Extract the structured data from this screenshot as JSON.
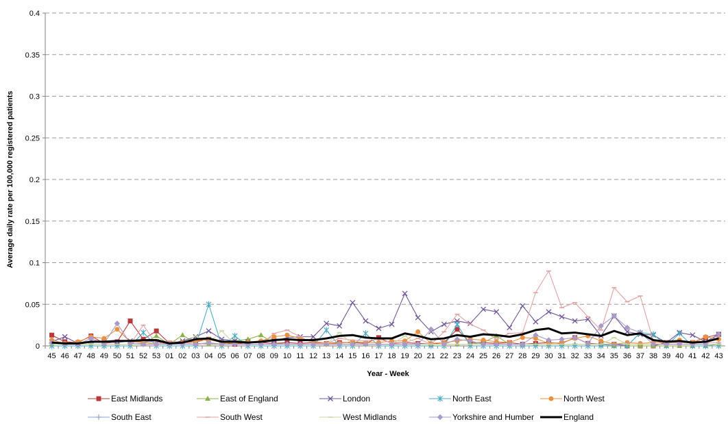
{
  "chart_data": {
    "type": "line",
    "xlabel": "Year - Week",
    "ylabel": "Average daily rate per 100,000 registered patients",
    "ylim": [
      0,
      0.4
    ],
    "yticks": [
      "0",
      "0.05",
      "0.1",
      "0.15",
      "0.2",
      "0.25",
      "0.3",
      "0.35",
      "0.4"
    ],
    "grid": true,
    "legend_position": "bottom",
    "categories": [
      "45",
      "46",
      "47",
      "48",
      "49",
      "50",
      "51",
      "52",
      "53",
      "01",
      "02",
      "03",
      "04",
      "05",
      "06",
      "07",
      "08",
      "09",
      "10",
      "11",
      "12",
      "13",
      "14",
      "15",
      "16",
      "17",
      "18",
      "19",
      "20",
      "21",
      "22",
      "23",
      "24",
      "25",
      "26",
      "27",
      "28",
      "29",
      "30",
      "31",
      "32",
      "33",
      "34",
      "35",
      "36",
      "37",
      "38",
      "39",
      "40",
      "41",
      "42",
      "43"
    ],
    "series": [
      {
        "name": "East Midlands",
        "color": "#b9383b",
        "marker": "square",
        "values": [
          0.013,
          0.005,
          0.004,
          0.012,
          0.003,
          0.005,
          0.03,
          0.008,
          0.018,
          0.003,
          0.004,
          0.005,
          0.008,
          0.004,
          0.002,
          0.004,
          0.004,
          0.003,
          0.004,
          0.003,
          0.004,
          0.003,
          0.004,
          0.004,
          0.003,
          0.01,
          0.003,
          0.004,
          0.003,
          0.002,
          0.004,
          0.02,
          0.004,
          0.004,
          0.003,
          0.004,
          0.002,
          0.003,
          0.004,
          0.003,
          0.01,
          0.003,
          0.002,
          0.002,
          0.0,
          0.0,
          0.0,
          0.004,
          0.004,
          0.004,
          0.01,
          0.014
        ]
      },
      {
        "name": "East of England",
        "color": "#8bb14a",
        "marker": "triangle",
        "values": [
          0.002,
          0.003,
          0.002,
          0.002,
          0.002,
          0.002,
          0.002,
          0.003,
          0.012,
          0.002,
          0.013,
          0.003,
          0.002,
          0.002,
          0.006,
          0.008,
          0.013,
          0.003,
          0.002,
          0.002,
          0.002,
          0.002,
          0.002,
          0.002,
          0.002,
          0.002,
          0.002,
          0.002,
          0.002,
          0.002,
          0.002,
          0.002,
          0.002,
          0.004,
          0.012,
          0.002,
          0.002,
          0.002,
          0.002,
          0.002,
          0.002,
          0.002,
          0.002,
          0.0,
          0.0,
          0.0,
          0.0,
          0.0,
          0.0,
          0.0,
          0.0,
          0.002
        ]
      },
      {
        "name": "London",
        "color": "#6f5598",
        "marker": "x",
        "values": [
          0.005,
          0.011,
          0.003,
          0.006,
          0.005,
          0.004,
          0.006,
          0.005,
          0.005,
          0.003,
          0.006,
          0.011,
          0.018,
          0.008,
          0.006,
          0.005,
          0.004,
          0.006,
          0.01,
          0.011,
          0.011,
          0.027,
          0.024,
          0.052,
          0.03,
          0.021,
          0.026,
          0.063,
          0.034,
          0.017,
          0.026,
          0.03,
          0.027,
          0.044,
          0.041,
          0.022,
          0.048,
          0.029,
          0.041,
          0.035,
          0.03,
          0.032,
          0.012,
          0.036,
          0.017,
          0.014,
          0.013,
          0.004,
          0.016,
          0.013,
          0.005,
          0.014
        ]
      },
      {
        "name": "North East",
        "color": "#4aa9c4",
        "marker": "star",
        "values": [
          0.0,
          0.0,
          0.0,
          0.0,
          0.0,
          0.0,
          0.0,
          0.016,
          0.0,
          0.0,
          0.0,
          0.0,
          0.05,
          0.0,
          0.012,
          0.0,
          0.0,
          0.0,
          0.0,
          0.0,
          0.0,
          0.019,
          0.0,
          0.0,
          0.015,
          0.0,
          0.0,
          0.0,
          0.0,
          0.0,
          0.0,
          0.026,
          0.0,
          0.0,
          0.0,
          0.0,
          0.0,
          0.0,
          0.0,
          0.0,
          0.0,
          0.0,
          0.0,
          0.0,
          0.0,
          0.016,
          0.014,
          0.0,
          0.015,
          0.0,
          0.0,
          0.0
        ]
      },
      {
        "name": "North West",
        "color": "#e9913f",
        "marker": "circle",
        "values": [
          0.007,
          0.003,
          0.005,
          0.011,
          0.009,
          0.02,
          0.005,
          0.004,
          0.002,
          0.003,
          0.004,
          0.006,
          0.008,
          0.004,
          0.003,
          0.004,
          0.006,
          0.011,
          0.013,
          0.009,
          0.006,
          0.003,
          0.003,
          0.005,
          0.004,
          0.004,
          0.006,
          0.006,
          0.017,
          0.003,
          0.004,
          0.006,
          0.008,
          0.007,
          0.005,
          0.004,
          0.01,
          0.009,
          0.003,
          0.004,
          0.009,
          0.012,
          0.006,
          0.002,
          0.004,
          0.003,
          0.004,
          0.004,
          0.007,
          0.004,
          0.011,
          0.008
        ]
      },
      {
        "name": "South East",
        "color": "#88a7d6",
        "marker": "plus",
        "values": [
          0.003,
          0.002,
          0.002,
          0.002,
          0.002,
          0.002,
          0.002,
          0.002,
          0.002,
          0.002,
          0.002,
          0.002,
          0.003,
          0.002,
          0.002,
          0.002,
          0.002,
          0.002,
          0.002,
          0.002,
          0.002,
          0.002,
          0.002,
          0.002,
          0.002,
          0.002,
          0.002,
          0.002,
          0.002,
          0.002,
          0.002,
          0.002,
          0.002,
          0.002,
          0.002,
          0.002,
          0.002,
          0.002,
          0.002,
          0.002,
          0.002,
          0.002,
          0.002,
          0.002,
          0.002,
          0.002,
          0.002,
          0.002,
          0.002,
          0.002,
          0.002,
          0.002
        ]
      },
      {
        "name": "South West",
        "color": "#e3a2a2",
        "marker": "dash",
        "values": [
          0.004,
          0.002,
          0.002,
          0.002,
          0.002,
          0.002,
          0.002,
          0.025,
          0.002,
          0.006,
          0.004,
          0.002,
          0.003,
          0.002,
          0.002,
          0.002,
          0.002,
          0.015,
          0.019,
          0.011,
          0.003,
          0.003,
          0.009,
          0.007,
          0.006,
          0.008,
          0.004,
          0.004,
          0.009,
          0.002,
          0.017,
          0.038,
          0.026,
          0.019,
          0.008,
          0.015,
          0.016,
          0.064,
          0.09,
          0.046,
          0.052,
          0.035,
          0.019,
          0.07,
          0.053,
          0.06,
          0.006,
          0.004,
          0.004,
          0.004,
          0.004,
          0.004
        ]
      },
      {
        "name": "West Midlands",
        "color": "#c7d8a1",
        "marker": "dash",
        "values": [
          0.002,
          0.002,
          0.002,
          0.002,
          0.002,
          0.002,
          0.002,
          0.002,
          0.002,
          0.002,
          0.002,
          0.012,
          0.004,
          0.018,
          0.002,
          0.002,
          0.002,
          0.002,
          0.002,
          0.002,
          0.002,
          0.002,
          0.016,
          0.002,
          0.002,
          0.002,
          0.002,
          0.012,
          0.002,
          0.002,
          0.002,
          0.002,
          0.002,
          0.002,
          0.002,
          0.002,
          0.002,
          0.002,
          0.002,
          0.002,
          0.002,
          0.002,
          0.002,
          0.01,
          0.002,
          0.002,
          0.002,
          0.002,
          0.002,
          0.002,
          0.002,
          0.002
        ]
      },
      {
        "name": "Yorkshire and Humber",
        "color": "#a99ac7",
        "marker": "diamond",
        "values": [
          0.004,
          0.002,
          0.002,
          0.009,
          0.003,
          0.027,
          0.003,
          0.002,
          0.002,
          0.002,
          0.002,
          0.002,
          0.004,
          0.002,
          0.002,
          0.002,
          0.002,
          0.002,
          0.002,
          0.002,
          0.002,
          0.002,
          0.002,
          0.002,
          0.002,
          0.002,
          0.002,
          0.002,
          0.002,
          0.02,
          0.002,
          0.008,
          0.006,
          0.002,
          0.002,
          0.002,
          0.002,
          0.013,
          0.007,
          0.008,
          0.01,
          0.003,
          0.024,
          0.036,
          0.022,
          0.016,
          0.002,
          0.002,
          0.002,
          0.002,
          0.002,
          0.014
        ]
      },
      {
        "name": "England",
        "color": "#000000",
        "marker": "none",
        "values": [
          0.004,
          0.003,
          0.003,
          0.005,
          0.005,
          0.006,
          0.006,
          0.007,
          0.007,
          0.003,
          0.004,
          0.008,
          0.009,
          0.005,
          0.005,
          0.004,
          0.005,
          0.007,
          0.008,
          0.007,
          0.007,
          0.009,
          0.012,
          0.013,
          0.01,
          0.009,
          0.009,
          0.015,
          0.012,
          0.008,
          0.009,
          0.013,
          0.011,
          0.014,
          0.013,
          0.011,
          0.014,
          0.019,
          0.021,
          0.015,
          0.016,
          0.014,
          0.012,
          0.018,
          0.013,
          0.015,
          0.007,
          0.005,
          0.006,
          0.004,
          0.005,
          0.009
        ]
      }
    ]
  }
}
